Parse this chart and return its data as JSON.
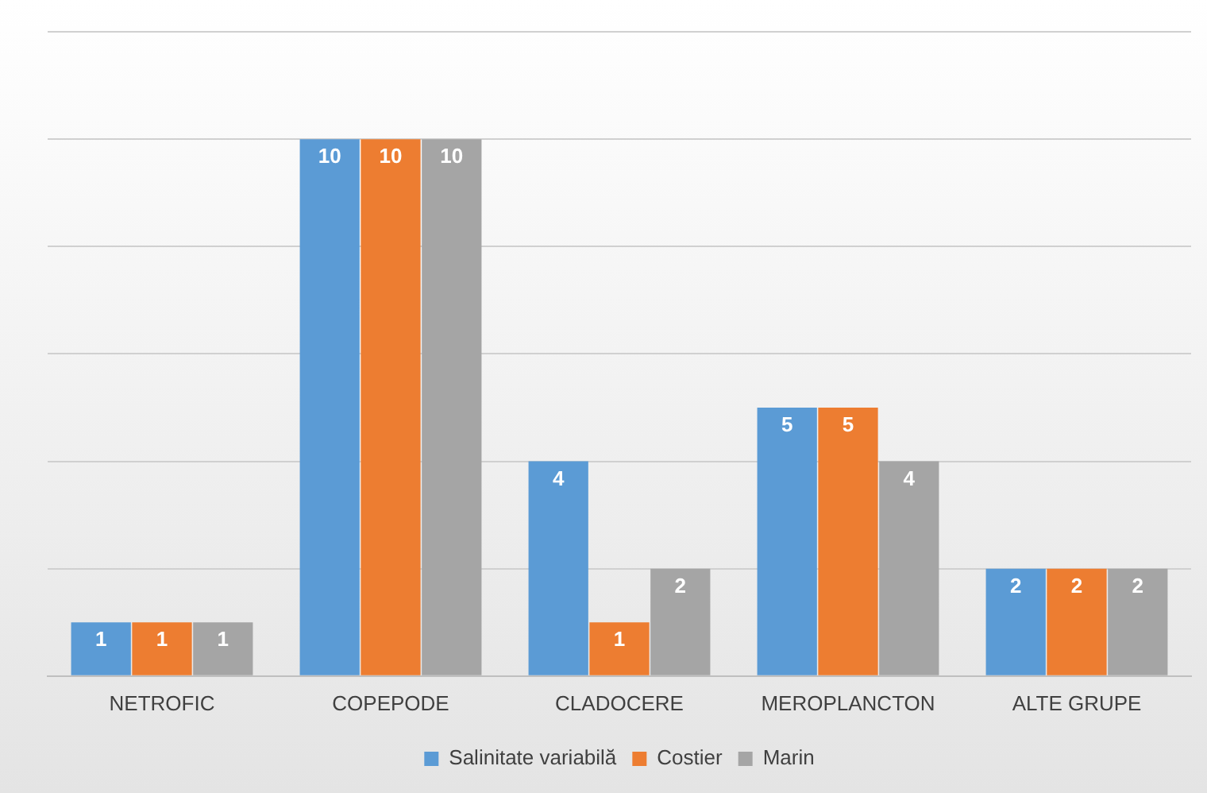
{
  "chart_data": {
    "type": "bar",
    "categories": [
      "NETROFIC",
      "COPEPODE",
      "CLADOCERE",
      "MEROPLANCTON",
      "ALTE GRUPE"
    ],
    "series": [
      {
        "name": "Salinitate variabilă",
        "color": "#5b9bd5",
        "values": [
          1,
          10,
          4,
          5,
          2
        ]
      },
      {
        "name": "Costier",
        "color": "#ed7d31",
        "values": [
          1,
          10,
          1,
          5,
          2
        ]
      },
      {
        "name": "Marin",
        "color": "#a5a5a5",
        "values": [
          1,
          10,
          2,
          4,
          2
        ]
      }
    ],
    "ylim": [
      0,
      12
    ],
    "yticks": [
      {
        "value": 0,
        "label": null
      },
      {
        "value": 2,
        "label": null
      },
      {
        "value": 4,
        "label": null
      },
      {
        "value": 6,
        "label": null
      },
      {
        "value": 8,
        "label": null
      },
      {
        "value": 10,
        "label": null
      },
      {
        "value": 12,
        "label": null
      }
    ],
    "grid": "y",
    "tick_labels": "x",
    "legend": "bottom",
    "data_labels": true
  }
}
